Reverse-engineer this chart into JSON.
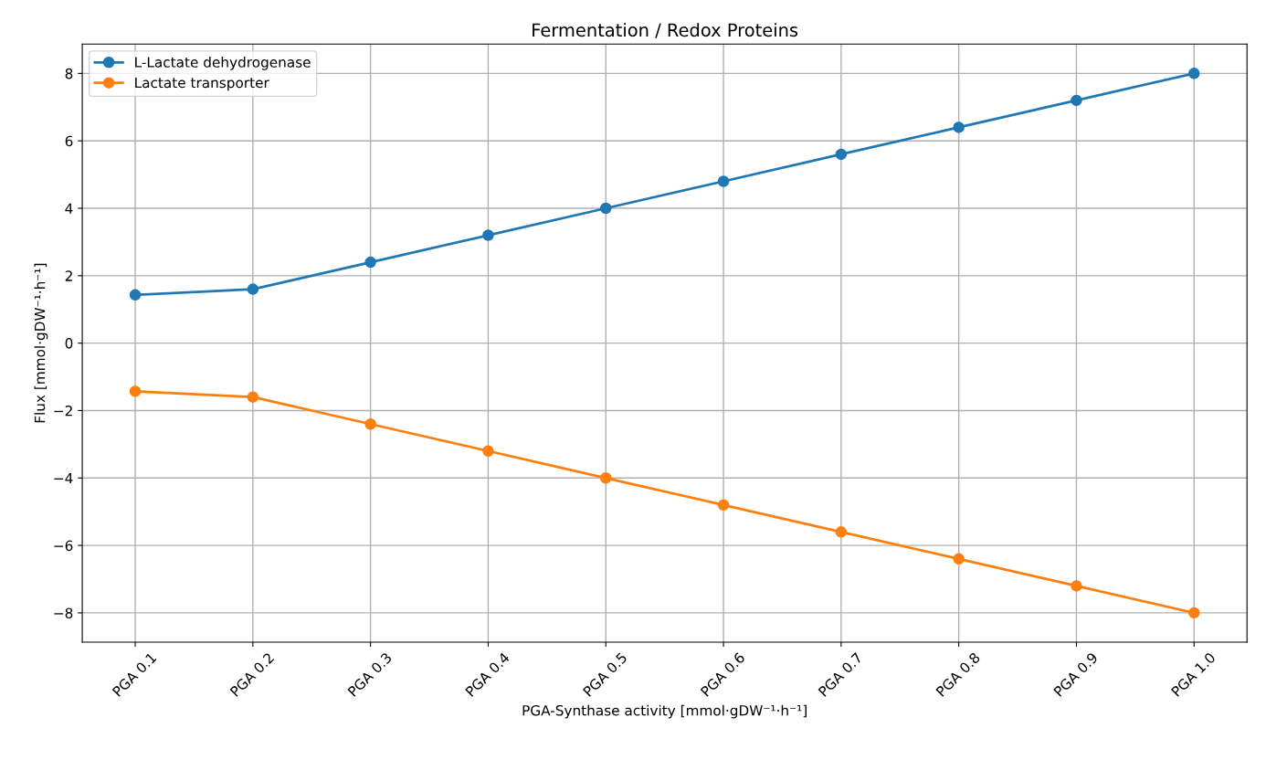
{
  "chart_data": {
    "type": "line",
    "title": "Fermentation / Redox Proteins",
    "xlabel": "PGA-Synthase activity [mmol·gDW⁻¹·h⁻¹]",
    "ylabel": "Flux [mmol·gDW⁻¹·h⁻¹]",
    "categories": [
      "PGA 0.1",
      "PGA 0.2",
      "PGA 0.3",
      "PGA 0.4",
      "PGA 0.5",
      "PGA 0.6",
      "PGA 0.7",
      "PGA 0.8",
      "PGA 0.9",
      "PGA 1.0"
    ],
    "series": [
      {
        "name": "L-Lactate dehydrogenase",
        "color": "#1f77b4",
        "values": [
          1.43,
          1.6,
          2.4,
          3.2,
          4.0,
          4.8,
          5.6,
          6.4,
          7.2,
          8.0
        ]
      },
      {
        "name": "Lactate transporter",
        "color": "#ff7f0e",
        "values": [
          -1.43,
          -1.6,
          -2.4,
          -3.2,
          -4.0,
          -4.8,
          -5.6,
          -6.4,
          -7.2,
          -8.0
        ]
      }
    ],
    "ylim": [
      -8.87,
      8.87
    ],
    "yticks": [
      {
        "value": -8,
        "label": "−8"
      },
      {
        "value": -6,
        "label": "−6"
      },
      {
        "value": -4,
        "label": "−4"
      },
      {
        "value": -2,
        "label": "−2"
      },
      0,
      2,
      4,
      6,
      8
    ],
    "grid": true,
    "legend": "top left",
    "marker": "circle",
    "line_style": "solid"
  }
}
